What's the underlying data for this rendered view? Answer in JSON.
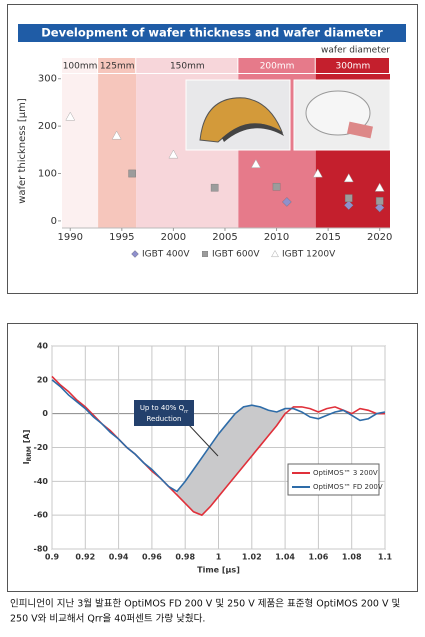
{
  "chart_data": [
    {
      "type": "scatter",
      "title": "Development of wafer thickness and wafer diameter",
      "band_title": "wafer diameter",
      "bands": [
        {
          "label": "100mm",
          "start": 1989.2,
          "end": 1992.7,
          "color": "#fcf0f0",
          "text_color": "#333333"
        },
        {
          "label": "125mm",
          "start": 1992.7,
          "end": 1996.4,
          "color": "#f6c6bc",
          "text_color": "#333333"
        },
        {
          "label": "150mm",
          "start": 1996.4,
          "end": 2006.3,
          "color": "#f7d6da",
          "text_color": "#333333"
        },
        {
          "label": "200mm",
          "start": 2006.3,
          "end": 2013.8,
          "color": "#e67a8a",
          "text_color": "#ffffff"
        },
        {
          "label": "300mm",
          "start": 2013.8,
          "end": 2021,
          "color": "#c41f2d",
          "text_color": "#ffffff"
        }
      ],
      "ylabel": "wafer thickness [µm]",
      "xlim": [
        1989.2,
        2021
      ],
      "ylim": [
        -15,
        310
      ],
      "xticks": [
        1990,
        1995,
        2000,
        2005,
        2010,
        2015,
        2020
      ],
      "yticks": [
        0,
        100,
        200,
        300
      ],
      "series": [
        {
          "name": "IGBT 400V",
          "marker": "diamond",
          "color": "#8f90cc",
          "x": [
            2011,
            2017,
            2020
          ],
          "values": [
            40,
            33,
            28
          ]
        },
        {
          "name": "IGBT 600V",
          "marker": "square",
          "color": "#9c9c9c",
          "x": [
            1996,
            2004,
            2010,
            2017,
            2020
          ],
          "values": [
            100,
            70,
            72,
            48,
            42
          ]
        },
        {
          "name": "IGBT 1200V",
          "marker": "triangle",
          "color": "#ffffff",
          "x": [
            1990,
            1994.5,
            2000,
            2008,
            2014,
            2017,
            2020
          ],
          "values": [
            220,
            180,
            140,
            120,
            100,
            90,
            70
          ]
        }
      ]
    },
    {
      "type": "line",
      "ylabel": "I",
      "ylabel_sub": "RRM",
      "ylabel_unit": "[A]",
      "xlabel": "Time [µs]",
      "annotation": "Up to 40% Q",
      "annotation_sub": "rr",
      "annotation_line2": "Reduction",
      "xlim": [
        0.9,
        1.1
      ],
      "ylim": [
        -80,
        40
      ],
      "xticks": [
        0.9,
        0.92,
        0.94,
        0.96,
        0.98,
        1,
        1.02,
        1.04,
        1.06,
        1.08,
        1.1
      ],
      "yticks": [
        -80,
        -60,
        -40,
        -20,
        0,
        20,
        40
      ],
      "grid": true,
      "x": [
        0.9,
        0.905,
        0.91,
        0.915,
        0.92,
        0.925,
        0.93,
        0.935,
        0.94,
        0.945,
        0.95,
        0.955,
        0.96,
        0.965,
        0.97,
        0.975,
        0.98,
        0.985,
        0.99,
        0.995,
        1.0,
        1.005,
        1.01,
        1.015,
        1.02,
        1.025,
        1.03,
        1.035,
        1.04,
        1.045,
        1.05,
        1.055,
        1.06,
        1.065,
        1.07,
        1.075,
        1.08,
        1.085,
        1.09,
        1.095,
        1.1
      ],
      "series": [
        {
          "name": "OptiMOS™ 3 200V",
          "color": "#e0303a",
          "values": [
            22,
            17,
            13,
            8,
            4,
            -1,
            -6,
            -10,
            -15,
            -20,
            -24,
            -29,
            -34,
            -38,
            -43,
            -48,
            -53,
            -58,
            -60,
            -55,
            -49,
            -43,
            -37,
            -31,
            -25,
            -19,
            -13,
            -7,
            0,
            4,
            4,
            3,
            1,
            3,
            4,
            2,
            0,
            3,
            2,
            0,
            0
          ]
        },
        {
          "name": "OptiMOS™ FD 200V",
          "color": "#2e6ca8",
          "values": [
            20,
            16,
            11,
            7,
            3,
            -2,
            -6,
            -11,
            -15,
            -20,
            -24,
            -29,
            -33,
            -38,
            -43,
            -46,
            -40,
            -33,
            -26,
            -19,
            -12,
            -6,
            0,
            4,
            5,
            4,
            2,
            1,
            3,
            3,
            1,
            -2,
            -3,
            -1,
            1,
            2,
            -1,
            -4,
            -3,
            0,
            1
          ]
        }
      ]
    }
  ],
  "caption": [
    "인피니언이 지난 3월 발표한 OptiMOS FD 200 V 및 250 V 제품은 표준형 OptiMOS 200 V 및",
    "250 V와 비교해서 Qrr을 40퍼센트 가량 낮췄다."
  ]
}
